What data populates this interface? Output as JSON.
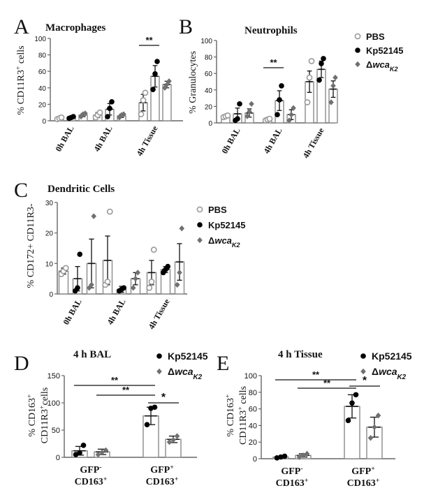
{
  "chart_data": [
    {
      "panel": "A",
      "type": "bar",
      "title": "Macrophages",
      "ylabel_html": "% CD11R3<sup>+</sup> cells",
      "ylabel_main": "% CD11R3",
      "ylabel_sup": "+",
      "ylabel_tail": " cells",
      "ylim": [
        0,
        100
      ],
      "yticks": [
        0,
        20,
        40,
        60,
        80,
        100
      ],
      "categories": [
        "0h BAL",
        "4h BAL",
        "4h Tissue"
      ],
      "series": [
        {
          "name": "PBS",
          "values": [
            3,
            7,
            22
          ],
          "sem": [
            1,
            3,
            10
          ],
          "points": [
            [
              2,
              3,
              4
            ],
            [
              4,
              7,
              10
            ],
            [
              8,
              25,
              34
            ]
          ]
        },
        {
          "name": "Kp52145",
          "values": [
            4,
            14,
            54
          ],
          "sem": [
            1,
            7,
            13
          ],
          "points": [
            [
              3,
              4,
              5
            ],
            [
              5,
              15,
              23
            ],
            [
              38,
              57,
              72
            ]
          ]
        },
        {
          "name": "ΔwcaK2",
          "values": [
            7,
            6,
            44
          ],
          "sem": [
            2,
            2,
            4
          ],
          "points": [
            [
              5,
              8,
              9
            ],
            [
              4,
              7,
              8
            ],
            [
              40,
              44,
              48
            ]
          ]
        }
      ],
      "significance": [
        {
          "label": "**",
          "category": 2,
          "from_series": 0,
          "to_series": 1
        }
      ]
    },
    {
      "panel": "B",
      "type": "bar",
      "title": "Neutrophils",
      "ylabel": "% Granulocytes",
      "ylim": [
        0,
        100
      ],
      "yticks": [
        0,
        20,
        40,
        60,
        80,
        100
      ],
      "categories": [
        "0h BAL",
        "4h BAL",
        "4h Tissue"
      ],
      "series": [
        {
          "name": "PBS",
          "values": [
            8,
            4,
            50
          ],
          "sem": [
            2,
            1,
            13
          ],
          "points": [
            [
              7,
              8,
              9
            ],
            [
              3,
              4,
              5
            ],
            [
              25,
              55,
              75
            ]
          ]
        },
        {
          "name": "Kp52145",
          "values": [
            11,
            27,
            65
          ],
          "sem": [
            7,
            12,
            10
          ],
          "points": [
            [
              3,
              5,
              23
            ],
            [
              10,
              28,
              45
            ],
            [
              52,
              72,
              78
            ]
          ]
        },
        {
          "name": "ΔwcaK2",
          "values": [
            12,
            10,
            41
          ],
          "sem": [
            5,
            6,
            10
          ],
          "points": [
            [
              8,
              14,
              23
            ],
            [
              3,
              10,
              18
            ],
            [
              25,
              45,
              55
            ]
          ]
        }
      ],
      "legend": [
        "PBS",
        "Kp52145",
        "ΔwcaK2"
      ],
      "legend_position": "top-right",
      "significance": [
        {
          "label": "**",
          "category": 1,
          "from_series": 0,
          "to_series": 1
        }
      ]
    },
    {
      "panel": "C",
      "type": "bar",
      "title": "Dendritic Cells",
      "ylabel": "% CD172+ CD11R3-",
      "ylim": [
        0,
        30
      ],
      "yticks": [
        0,
        10,
        20,
        30
      ],
      "categories": [
        "0h BAL",
        "4h BAL",
        "4h Tissue"
      ],
      "series": [
        {
          "name": "PBS",
          "values": [
            7.5,
            11,
            7
          ],
          "sem": [
            1,
            8,
            4
          ],
          "points": [
            [
              6.5,
              7.5,
              8.5
            ],
            [
              3,
              4,
              27
            ],
            [
              2,
              4,
              14.5
            ]
          ]
        },
        {
          "name": "Kp52145",
          "values": [
            5,
            1.5,
            8
          ],
          "sem": [
            4,
            1,
            1
          ],
          "points": [
            [
              1,
              2,
              13
            ],
            [
              1,
              1.5,
              2
            ],
            [
              7,
              8,
              9
            ]
          ]
        },
        {
          "name": "ΔwcaK2",
          "values": [
            10,
            5,
            10.5
          ],
          "sem": [
            8,
            2,
            6
          ],
          "points": [
            [
              2,
              3,
              25.5
            ],
            [
              2,
              5,
              7
            ],
            [
              3,
              7,
              21.5
            ]
          ]
        }
      ],
      "legend": [
        "PBS",
        "Kp52145",
        "ΔwcaK2"
      ],
      "legend_position": "right"
    },
    {
      "panel": "D",
      "type": "bar",
      "title": "4 h BAL",
      "ylabel_line1": "% CD163",
      "ylabel_line1_sup": "+",
      "ylabel_line2": "CD11R3",
      "ylabel_line2_sup": "+",
      "ylabel_line2_tail": "cells",
      "ylim": [
        0,
        150
      ],
      "yticks": [
        0,
        50,
        100,
        150
      ],
      "categories": [
        {
          "line1": "GFP",
          "sup1": "-",
          "line2": "CD163",
          "sup2": "+"
        },
        {
          "line1": "GFP",
          "sup1": "+",
          "line2": "CD163",
          "sup2": "+"
        }
      ],
      "series": [
        {
          "name": "Kp52145",
          "values": [
            12,
            76
          ],
          "sem": [
            8,
            16
          ],
          "points": [
            [
              5,
              8,
              22
            ],
            [
              60,
              90,
              92
            ]
          ]
        },
        {
          "name": "ΔwcaK2",
          "values": [
            10,
            33
          ],
          "sem": [
            5,
            6
          ],
          "points": [
            [
              5,
              9,
              13
            ],
            [
              28,
              32,
              39
            ]
          ]
        }
      ],
      "legend": [
        "Kp52145",
        "ΔwcaK2"
      ],
      "legend_position": "top-right",
      "significance": [
        {
          "label": "**",
          "from": [
            0,
            0
          ],
          "to": [
            1,
            0
          ]
        },
        {
          "label": "**",
          "from": [
            0,
            1
          ],
          "to": [
            1,
            0
          ]
        },
        {
          "label": "*",
          "from": [
            1,
            0
          ],
          "to": [
            1,
            1
          ]
        }
      ]
    },
    {
      "panel": "E",
      "type": "bar",
      "title": "4 h Tissue",
      "ylabel_line1": "% CD163",
      "ylabel_line1_sup": "+",
      "ylabel_line2": "CD11R3",
      "ylabel_line2_sup": "+",
      "ylabel_line2_tail": " cells",
      "ylim": [
        0,
        100
      ],
      "yticks": [
        0,
        20,
        40,
        60,
        80,
        100
      ],
      "categories": [
        {
          "line1": "GFP",
          "sup1": "-",
          "line2": "CD163",
          "sup2": "+"
        },
        {
          "line1": "GFP",
          "sup1": "+",
          "line2": "CD163",
          "sup2": "+"
        }
      ],
      "series": [
        {
          "name": "Kp52145",
          "values": [
            2,
            63
          ],
          "sem": [
            1,
            14
          ],
          "points": [
            [
              1,
              2,
              3
            ],
            [
              46,
              67,
              77
            ]
          ]
        },
        {
          "name": "ΔwcaK2",
          "values": [
            4,
            38
          ],
          "sem": [
            2,
            12
          ],
          "points": [
            [
              2,
              4,
              6
            ],
            [
              25,
              38,
              52
            ]
          ]
        }
      ],
      "legend": [
        "Kp52145",
        "ΔwcaK2"
      ],
      "legend_position": "top-right",
      "significance": [
        {
          "label": "**",
          "from": [
            0,
            0
          ],
          "to": [
            1,
            0
          ]
        },
        {
          "label": "**",
          "from": [
            0,
            1
          ],
          "to": [
            1,
            0
          ]
        },
        {
          "label": "*",
          "from": [
            1,
            0
          ],
          "to": [
            1,
            1
          ]
        }
      ]
    }
  ],
  "panel_letters": [
    "A",
    "B",
    "C",
    "D",
    "E"
  ],
  "colors": {
    "pbs": "#9a9a9a",
    "kp": "#000000",
    "wca": "#707070",
    "bar_stroke": "#8a8a8a",
    "axis": "#666666"
  },
  "marker_shapes": {
    "PBS": "open-circle",
    "Kp52145": "filled-circle",
    "ΔwcaK2": "diamond"
  }
}
